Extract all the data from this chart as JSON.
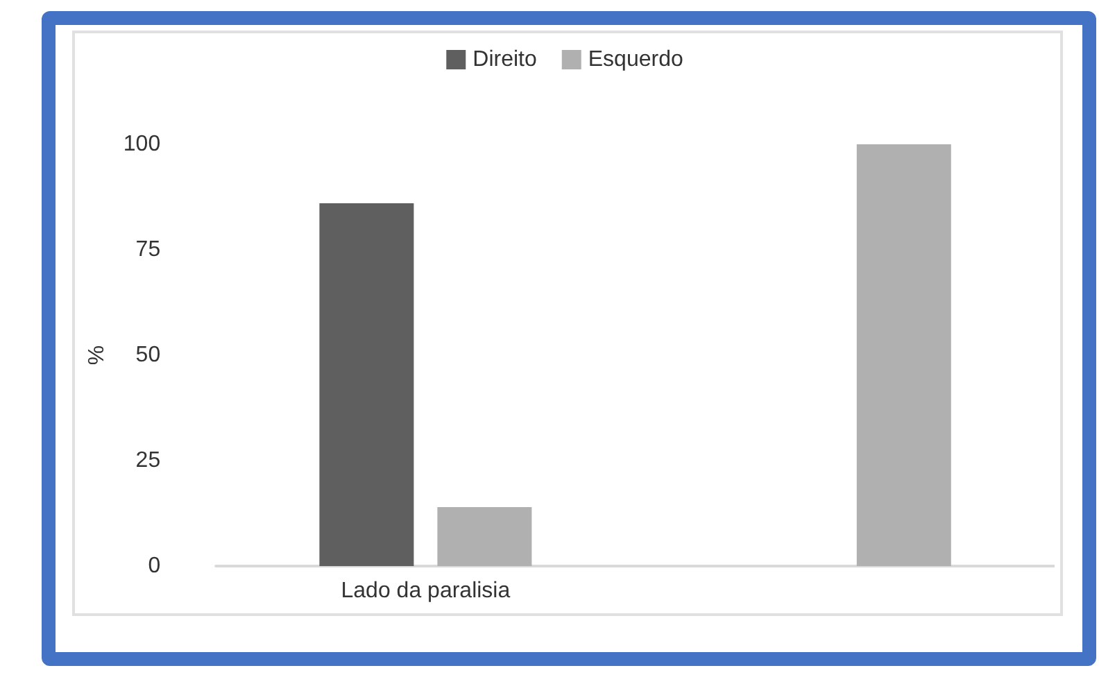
{
  "chart_data": {
    "type": "bar",
    "ylabel": "%",
    "categories": [
      "Lado da paralisia",
      null
    ],
    "series": [
      {
        "name": "Direito",
        "color": "#5f5f5f",
        "values": [
          86,
          null
        ]
      },
      {
        "name": "Esquerdo",
        "color": "#b0b0b0",
        "values": [
          14,
          100
        ]
      }
    ],
    "ylim": [
      0,
      100
    ],
    "yticks": [
      0,
      25,
      50,
      75,
      100
    ],
    "grid": false,
    "legend": "top"
  }
}
